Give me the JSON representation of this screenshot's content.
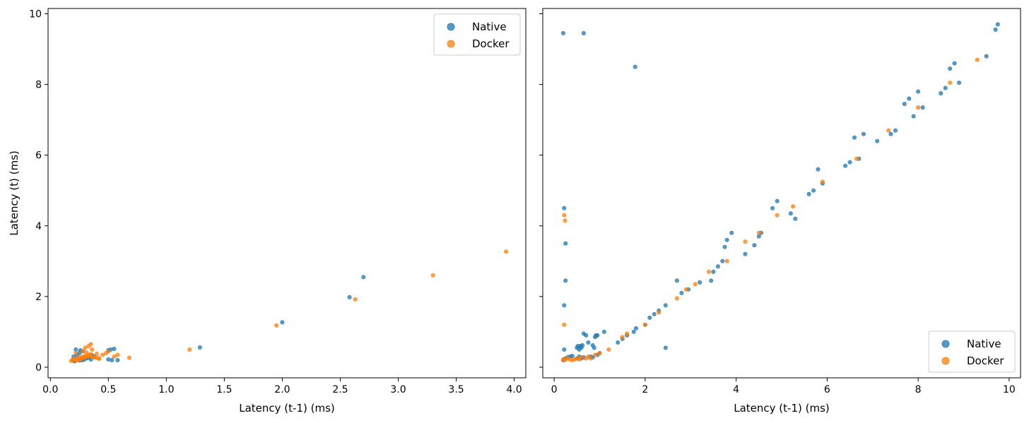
{
  "chart_data": [
    {
      "type": "scatter",
      "title": "",
      "xlabel": "Latency (t-1) (ms)",
      "ylabel": "Latency (t) (ms)",
      "xlim": [
        -0.02,
        4.1
      ],
      "ylim": [
        -0.3,
        10.15
      ],
      "xticks": [
        "0.0",
        "0.5",
        "1.0",
        "1.5",
        "2.0",
        "2.5",
        "3.0",
        "3.5",
        "4.0"
      ],
      "yticks": [
        "0",
        "2",
        "4",
        "6",
        "8",
        "10"
      ],
      "legend": {
        "position": "top-right",
        "entries": [
          "Native",
          "Docker"
        ]
      },
      "series": [
        {
          "name": "Native",
          "color": "#1f77b4",
          "x": [
            0.2,
            0.22,
            0.24,
            0.26,
            0.28,
            0.3,
            0.32,
            0.34,
            0.36,
            0.21,
            0.25,
            0.29,
            0.31,
            0.33,
            0.38,
            0.23,
            0.27,
            0.35,
            0.22,
            0.26,
            0.52,
            0.55,
            0.5,
            0.53,
            0.58,
            0.2,
            0.23,
            0.25,
            0.28,
            0.31,
            0.5,
            1.29,
            2.0,
            2.58,
            2.7
          ],
          "y": [
            0.18,
            0.2,
            0.22,
            0.24,
            0.26,
            0.28,
            0.3,
            0.32,
            0.34,
            0.17,
            0.19,
            0.21,
            0.25,
            0.27,
            0.3,
            0.23,
            0.2,
            0.22,
            0.5,
            0.48,
            0.5,
            0.52,
            0.48,
            0.2,
            0.2,
            0.3,
            0.35,
            0.4,
            0.45,
            0.28,
            0.22,
            0.56,
            1.27,
            1.98,
            2.55
          ]
        },
        {
          "name": "Docker",
          "color": "#ff7f0e",
          "x": [
            0.18,
            0.2,
            0.22,
            0.24,
            0.26,
            0.28,
            0.3,
            0.32,
            0.34,
            0.36,
            0.38,
            0.4,
            0.42,
            0.19,
            0.21,
            0.23,
            0.25,
            0.27,
            0.29,
            0.31,
            0.33,
            0.35,
            0.3,
            0.33,
            0.35,
            0.28,
            0.31,
            0.4,
            0.45,
            0.48,
            0.5,
            0.55,
            0.58,
            0.25,
            0.22,
            0.36,
            0.42,
            0.68,
            1.2,
            1.95,
            2.63,
            3.3,
            3.93
          ],
          "y": [
            0.18,
            0.19,
            0.2,
            0.22,
            0.24,
            0.26,
            0.28,
            0.3,
            0.32,
            0.3,
            0.28,
            0.26,
            0.24,
            0.21,
            0.23,
            0.25,
            0.27,
            0.29,
            0.31,
            0.33,
            0.35,
            0.37,
            0.55,
            0.6,
            0.65,
            0.45,
            0.42,
            0.38,
            0.35,
            0.4,
            0.45,
            0.3,
            0.35,
            0.2,
            0.4,
            0.5,
            0.25,
            0.27,
            0.5,
            1.18,
            1.92,
            2.6,
            3.27
          ]
        }
      ]
    },
    {
      "type": "scatter",
      "title": "",
      "xlabel": "Latency (t-1) (ms)",
      "ylabel": "",
      "xlim": [
        -0.25,
        10.25
      ],
      "ylim": [
        -0.3,
        10.15
      ],
      "xticks": [
        "0",
        "2",
        "4",
        "6",
        "8",
        "10"
      ],
      "yticks": [
        "0",
        "2",
        "4",
        "6",
        "8",
        "10"
      ],
      "legend": {
        "position": "bottom-right",
        "entries": [
          "Native",
          "Docker"
        ]
      },
      "series": [
        {
          "name": "Native",
          "color": "#1f77b4",
          "x": [
            0.2,
            0.65,
            1.78,
            0.22,
            0.25,
            0.22,
            0.25,
            0.22,
            0.2,
            0.22,
            0.25,
            0.3,
            0.35,
            0.4,
            0.5,
            0.52,
            0.55,
            0.58,
            0.6,
            0.62,
            0.65,
            0.7,
            0.75,
            0.85,
            0.88,
            0.9,
            0.92,
            0.95,
            1.0,
            1.1,
            0.6,
            0.65,
            0.5,
            0.55,
            0.8,
            0.85,
            0.95,
            1.4,
            1.5,
            1.6,
            1.75,
            1.8,
            2.0,
            2.1,
            2.2,
            2.3,
            2.45,
            2.7,
            2.8,
            2.95,
            3.2,
            3.45,
            3.5,
            3.6,
            3.7,
            3.75,
            3.8,
            3.9,
            4.2,
            4.4,
            4.5,
            4.55,
            4.8,
            4.9,
            5.2,
            5.3,
            5.6,
            5.7,
            5.8,
            5.9,
            6.4,
            6.5,
            6.6,
            6.7,
            6.8,
            7.1,
            7.4,
            7.5,
            7.7,
            7.8,
            7.9,
            8.0,
            8.1,
            8.5,
            8.6,
            8.7,
            8.8,
            8.9,
            9.5,
            9.7,
            9.75,
            2.45
          ],
          "y": [
            9.45,
            9.45,
            8.5,
            4.5,
            2.45,
            1.75,
            3.5,
            0.5,
            0.2,
            0.22,
            0.25,
            0.28,
            0.3,
            0.32,
            0.55,
            0.6,
            0.5,
            0.6,
            0.55,
            0.62,
            0.95,
            0.9,
            0.7,
            0.62,
            0.55,
            0.85,
            0.9,
            0.9,
            0.4,
            1.0,
            0.25,
            0.28,
            0.25,
            0.3,
            0.3,
            0.28,
            0.35,
            0.7,
            0.8,
            0.9,
            1.0,
            1.1,
            1.2,
            1.4,
            1.5,
            1.6,
            1.75,
            2.45,
            2.1,
            2.2,
            2.4,
            2.45,
            2.7,
            2.85,
            3.0,
            3.4,
            3.6,
            3.8,
            3.2,
            3.45,
            3.7,
            3.8,
            4.5,
            4.7,
            4.35,
            4.2,
            4.9,
            5.0,
            5.6,
            5.2,
            5.7,
            5.8,
            6.5,
            5.9,
            6.6,
            6.4,
            6.6,
            6.7,
            7.45,
            7.6,
            7.1,
            7.8,
            7.35,
            7.75,
            7.9,
            8.45,
            8.6,
            8.05,
            8.8,
            9.55,
            9.7,
            0.55
          ]
        },
        {
          "name": "Docker",
          "color": "#ff7f0e",
          "x": [
            0.22,
            0.24,
            0.22,
            0.2,
            0.22,
            0.25,
            0.3,
            0.35,
            0.4,
            0.45,
            0.5,
            0.55,
            0.6,
            0.7,
            0.75,
            0.8,
            0.9,
            1.0,
            1.2,
            1.5,
            1.6,
            2.0,
            2.3,
            2.7,
            2.9,
            3.1,
            3.4,
            3.8,
            4.2,
            4.5,
            4.9,
            5.25,
            5.9,
            6.65,
            7.35,
            8.0,
            8.7,
            9.3
          ],
          "y": [
            4.3,
            4.15,
            1.2,
            0.22,
            0.2,
            0.22,
            0.25,
            0.22,
            0.2,
            0.22,
            0.25,
            0.22,
            0.28,
            0.25,
            0.3,
            0.25,
            0.35,
            0.4,
            0.5,
            0.85,
            0.95,
            1.2,
            1.55,
            1.95,
            2.2,
            2.35,
            2.7,
            3.0,
            3.55,
            3.8,
            4.3,
            4.55,
            5.25,
            5.9,
            6.7,
            7.35,
            8.05,
            8.7
          ]
        }
      ]
    }
  ]
}
